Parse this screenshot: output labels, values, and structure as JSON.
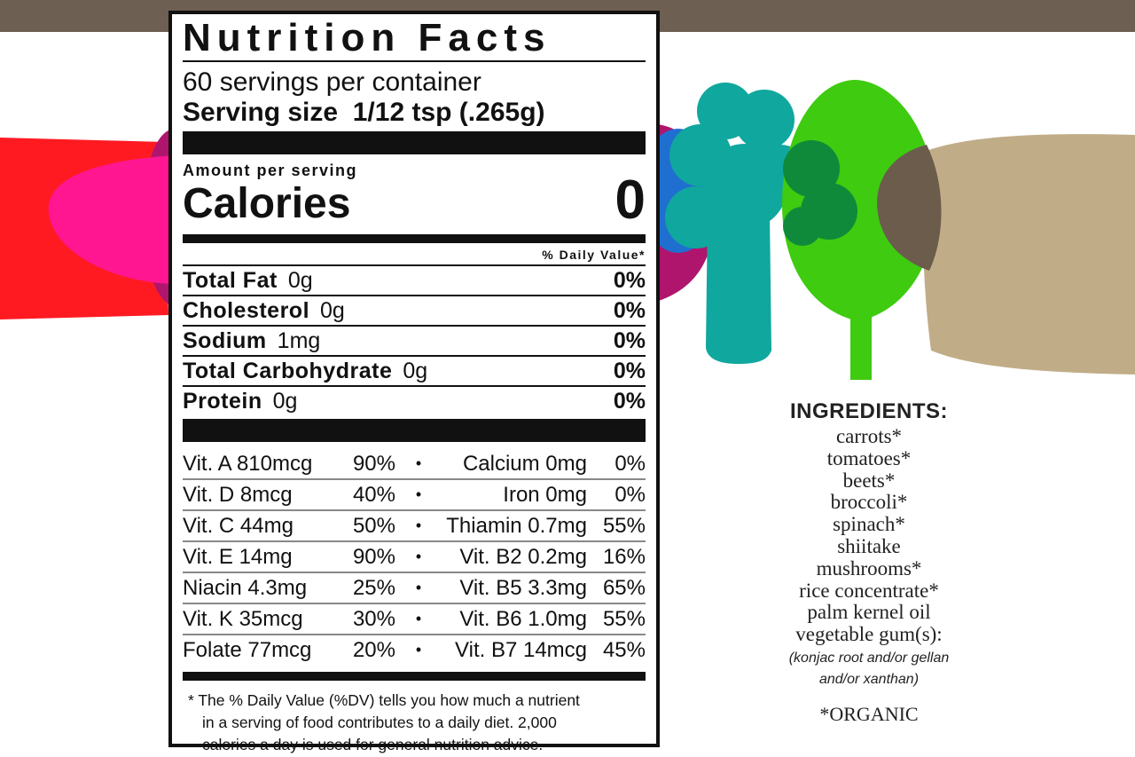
{
  "label": {
    "title": "Nutrition Facts",
    "servings": "60 servings per container",
    "serving_size_label": "Serving size",
    "serving_size_value": "1/12 tsp (.265g)",
    "amount_per_serving": "Amount per serving",
    "calories_label": "Calories",
    "calories_value": "0",
    "daily_value_header": "% Daily Value*",
    "nutrients": [
      {
        "name": "Total Fat",
        "amount": "0g",
        "dv": "0%"
      },
      {
        "name": "Cholesterol",
        "amount": "0g",
        "dv": "0%"
      },
      {
        "name": "Sodium",
        "amount": "1mg",
        "dv": "0%"
      },
      {
        "name": "Total Carbohydrate",
        "amount": "0g",
        "dv": "0%"
      },
      {
        "name": "Protein",
        "amount": "0g",
        "dv": "0%"
      }
    ],
    "vitamins": [
      {
        "left": "Vit. A 810mcg",
        "left_pct": "90%",
        "right": "Calcium 0mg",
        "right_pct": "0%"
      },
      {
        "left": "Vit. D 8mcg",
        "left_pct": "40%",
        "right": "Iron 0mg",
        "right_pct": "0%"
      },
      {
        "left": "Vit. C 44mg",
        "left_pct": "50%",
        "right": "Thiamin 0.7mg",
        "right_pct": "55%"
      },
      {
        "left": "Vit. E 14mg",
        "left_pct": "90%",
        "right": "Vit. B2 0.2mg",
        "right_pct": "16%"
      },
      {
        "left": "Niacin 4.3mg",
        "left_pct": "25%",
        "right": "Vit. B5 3.3mg",
        "right_pct": "65%"
      },
      {
        "left": "Vit. K 35mcg",
        "left_pct": "30%",
        "right": "Vit. B6 1.0mg",
        "right_pct": "55%"
      },
      {
        "left": "Folate 77mcg",
        "left_pct": "20%",
        "right": "Vit. B7 14mcg",
        "right_pct": "45%"
      }
    ],
    "separator": "•",
    "footnote_lines": [
      "* The % Daily Value (%DV) tells you how much a nutrient",
      "in a serving of food contributes to a daily diet. 2,000",
      "calories a day is used for general nutrition advice."
    ]
  },
  "ingredients": {
    "heading": "INGREDIENTS:",
    "items": [
      "carrots*",
      "tomatoes*",
      "beets*",
      "broccoli*",
      "spinach*",
      "shiitake",
      "mushrooms*",
      "rice concentrate*",
      "palm kernel oil",
      "vegetable gum(s):"
    ],
    "note_lines": [
      "(konjac root and/or gellan",
      "and/or xanthan)"
    ],
    "organic_note": "*ORGANIC"
  },
  "colors": {
    "top_bar": "#6d5f51",
    "carrot": "#ff1a22",
    "tomato": "#ff1690",
    "beet": "#b0156d",
    "blue_veg": "#1f6fd1",
    "broccoli": "#10a79e",
    "spinach": "#3ecb10",
    "dark_green": "#0f8a3a",
    "mushroom_dark": "#6b5c4c",
    "mushroom_tan": "#c0ad88"
  }
}
